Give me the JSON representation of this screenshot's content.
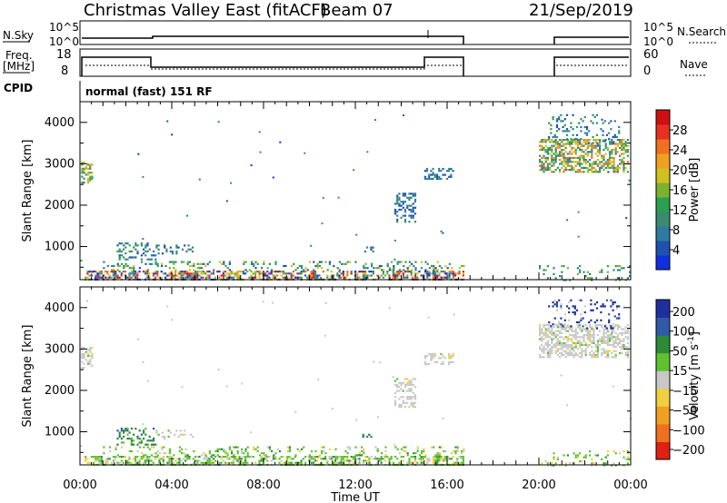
{
  "header": {
    "title": "Christmas Valley East (fitACF)",
    "beam": "Beam 07",
    "date": "21/Sep/2019"
  },
  "sky_panel": {
    "left_label": "N.Sky",
    "right_label": "N.Search",
    "left_ticks": [
      "10^5",
      "10^0"
    ],
    "right_ticks": [
      "10^5",
      "10^0"
    ]
  },
  "freq_panel": {
    "left_label_line1": "Freq.",
    "left_label_line2": "[MHz]",
    "right_label": "Nave",
    "left_ticks": [
      "18",
      "8"
    ],
    "right_ticks": [
      "60",
      "0"
    ]
  },
  "cpid": {
    "label": "CPID",
    "mode": "normal (fast) 151 RF"
  },
  "x_axis": {
    "label": "Time UT",
    "tick_labels": [
      "00:00",
      "04:00",
      "08:00",
      "12:00",
      "16:00",
      "20:00",
      "00:00"
    ]
  },
  "chart_data": [
    {
      "type": "heatmap",
      "title": "",
      "xlabel": "Time UT",
      "ylabel": "Slant Range [km]",
      "xlim": [
        0,
        24
      ],
      "ylim": [
        200,
        4500
      ],
      "ytick_labels": [
        "1000",
        "2000",
        "3000",
        "4000"
      ],
      "colorbar": {
        "label": "Power [dB]",
        "range": [
          0,
          32
        ],
        "tick_labels": [
          "4",
          "8",
          "12",
          "16",
          "20",
          "24",
          "28"
        ]
      },
      "colormap": [
        "#1030e0",
        "#2050b0",
        "#2f7aa0",
        "#3a8a70",
        "#2aa050",
        "#80b030",
        "#d0c020",
        "#f0a020",
        "#f07020",
        "#e83020",
        "#d01010"
      ],
      "grid": false
    },
    {
      "type": "heatmap",
      "title": "",
      "xlabel": "Time UT",
      "ylabel": "Slant Range [km]",
      "xlim": [
        0,
        24
      ],
      "ylim": [
        200,
        4500
      ],
      "ytick_labels": [
        "1000",
        "2000",
        "3000",
        "4000"
      ],
      "colorbar": {
        "label": "Velocity [m s^-1]",
        "tick_labels": [
          "200",
          "100",
          "50",
          "15",
          "−15",
          "−50",
          "−100",
          "−200"
        ]
      },
      "colormap": [
        "#1f2fa0",
        "#2f5aa8",
        "#2f8a3a",
        "#60c030",
        "#c8c8c8",
        "#f0d040",
        "#f0a020",
        "#f07020",
        "#e02010"
      ],
      "grid": false
    }
  ]
}
